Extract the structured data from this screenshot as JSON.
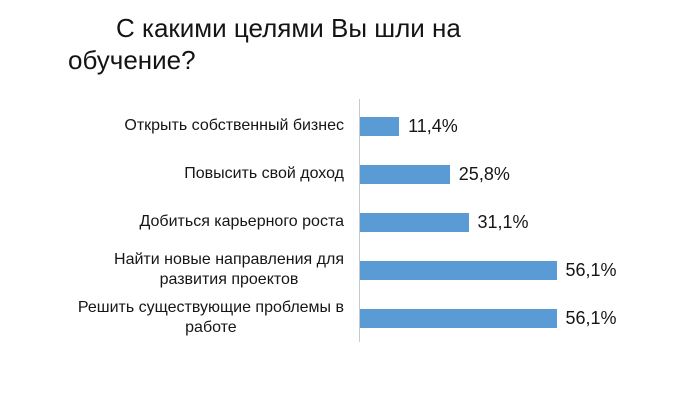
{
  "title": {
    "line1": "С какими целями Вы шли на",
    "line2": "обучение?"
  },
  "chart_data": {
    "type": "bar",
    "orientation": "horizontal",
    "title": "С какими целями Вы шли на обучение?",
    "categories": [
      "Открыть собственный бизнес",
      "Повысить свой доход",
      "Добиться карьерного роста",
      "Найти новые направления для\nразвития проектов",
      "Решить существующие проблемы в\nработе"
    ],
    "values": [
      11.4,
      25.8,
      31.1,
      56.1,
      56.1
    ],
    "value_labels": [
      "11,4%",
      "25,8%",
      "31,1%",
      "56,1%",
      "56,1%"
    ],
    "xlabel": "",
    "ylabel": "",
    "xlim": [
      0,
      60
    ],
    "grid": false,
    "legend": false,
    "colors": {
      "bar": "#5B9BD5",
      "axis_line": "#C9C9C9",
      "text": "#161616"
    }
  }
}
